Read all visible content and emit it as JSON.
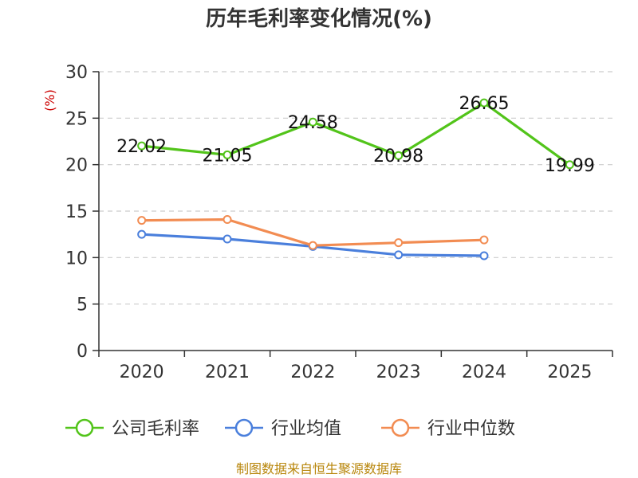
{
  "chart_data": {
    "type": "line",
    "title": "历年毛利率变化情况(%)",
    "ylabel": "(%)",
    "xlabel": "",
    "categories": [
      "2020",
      "2021",
      "2022",
      "2023",
      "2024",
      "2025"
    ],
    "ylim": [
      0,
      30
    ],
    "yticks": [
      0,
      5,
      10,
      15,
      20,
      25,
      30
    ],
    "grid": true,
    "legend_position": "bottom",
    "series": [
      {
        "name": "公司毛利率",
        "color": "#52c41a",
        "values": [
          22.02,
          21.05,
          24.58,
          20.98,
          26.65,
          19.99
        ],
        "labels": [
          "22.02",
          "21.05",
          "24.58",
          "20.98",
          "26.65",
          "19.99"
        ]
      },
      {
        "name": "行业均值",
        "color": "#4a7fdc",
        "values": [
          12.5,
          12.0,
          11.2,
          10.3,
          10.2,
          null
        ]
      },
      {
        "name": "行业中位数",
        "color": "#f28c52",
        "values": [
          14.0,
          14.1,
          11.3,
          11.6,
          11.9,
          null
        ]
      }
    ]
  },
  "source": "制图数据来自恒生聚源数据库"
}
